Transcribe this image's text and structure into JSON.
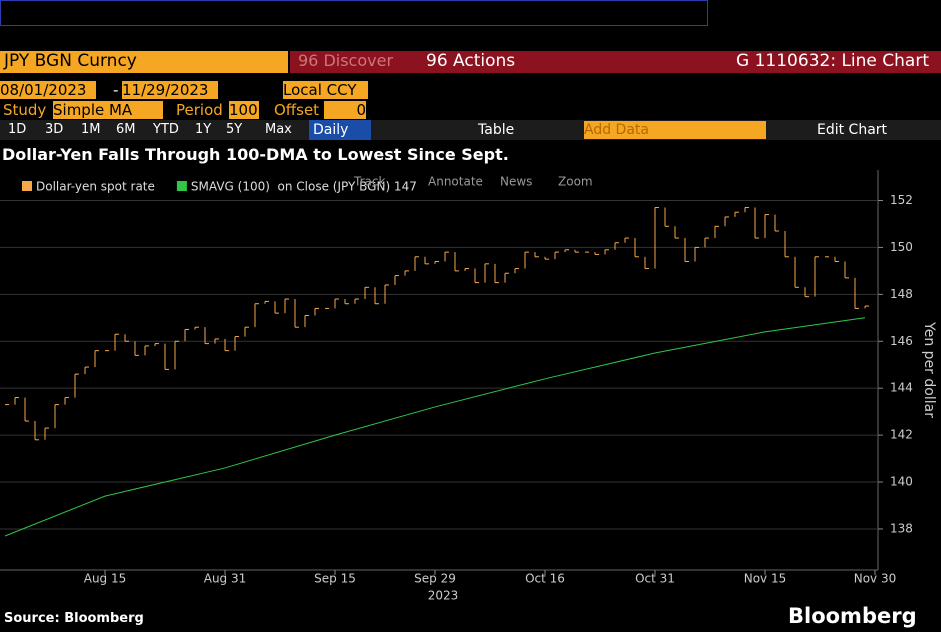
{
  "ui": {
    "security": "JPY BGN Curncy",
    "discover": "96 Discover",
    "actions": "96 Actions",
    "window_title": "G 1110632: Line Chart",
    "start_date": "08/01/2023",
    "end_date": "11/29/2023",
    "currency": "Local CCY",
    "study_label": "Study",
    "study": "Simple MA",
    "period_label": "Period",
    "period": "100",
    "offset_label": "Offset",
    "offset": "0",
    "ranges": [
      "1D",
      "3D",
      "1M",
      "6M",
      "YTD",
      "1Y",
      "5Y",
      "Max"
    ],
    "frequency": "Daily",
    "table": "Table",
    "add_data": "Add Data",
    "edit_chart": "Edit Chart",
    "tools": [
      "Track",
      "Annotate",
      "News",
      "Zoom"
    ],
    "source": "Source: Bloomberg",
    "brand": "Bloomberg"
  },
  "chart_data": {
    "type": "ohlc",
    "title": "Dollar-Yen Falls Through 100-DMA to Lowest Since Sept.",
    "ylabel": "Yen per dollar",
    "xlabel": "2023",
    "categories": [
      "Aug 1",
      "Aug 2",
      "Aug 3",
      "Aug 4",
      "Aug 7",
      "Aug 8",
      "Aug 9",
      "Aug 10",
      "Aug 11",
      "Aug 14",
      "Aug 15",
      "Aug 16",
      "Aug 17",
      "Aug 18",
      "Aug 21",
      "Aug 22",
      "Aug 23",
      "Aug 24",
      "Aug 25",
      "Aug 28",
      "Aug 29",
      "Aug 30",
      "Aug 31",
      "Sep 1",
      "Sep 4",
      "Sep 5",
      "Sep 6",
      "Sep 7",
      "Sep 8",
      "Sep 11",
      "Sep 12",
      "Sep 13",
      "Sep 14",
      "Sep 15",
      "Sep 18",
      "Sep 19",
      "Sep 20",
      "Sep 21",
      "Sep 22",
      "Sep 25",
      "Sep 26",
      "Sep 27",
      "Sep 28",
      "Sep 29",
      "Oct 2",
      "Oct 3",
      "Oct 4",
      "Oct 5",
      "Oct 6",
      "Oct 9",
      "Oct 10",
      "Oct 11",
      "Oct 12",
      "Oct 13",
      "Oct 16",
      "Oct 17",
      "Oct 18",
      "Oct 19",
      "Oct 20",
      "Oct 23",
      "Oct 24",
      "Oct 25",
      "Oct 26",
      "Oct 27",
      "Oct 30",
      "Oct 31",
      "Nov 1",
      "Nov 2",
      "Nov 3",
      "Nov 6",
      "Nov 7",
      "Nov 8",
      "Nov 9",
      "Nov 10",
      "Nov 13",
      "Nov 14",
      "Nov 15",
      "Nov 16",
      "Nov 17",
      "Nov 20",
      "Nov 21",
      "Nov 22",
      "Nov 23",
      "Nov 24",
      "Nov 27",
      "Nov 28",
      "Nov 29"
    ],
    "series": [
      {
        "name": "Dollar-yen spot rate",
        "color": "#f5a84a",
        "values": [
          143.3,
          143.6,
          142.6,
          141.8,
          142.3,
          143.3,
          143.6,
          144.6,
          144.9,
          145.6,
          145.6,
          146.3,
          146.0,
          145.4,
          145.8,
          145.9,
          144.8,
          146.0,
          146.5,
          146.6,
          145.9,
          146.1,
          145.6,
          146.2,
          146.6,
          147.6,
          147.7,
          147.2,
          147.8,
          146.6,
          147.1,
          147.4,
          147.4,
          147.8,
          147.6,
          147.8,
          148.3,
          147.6,
          148.4,
          148.8,
          149.0,
          149.6,
          149.3,
          149.4,
          149.8,
          149.0,
          149.1,
          148.5,
          149.3,
          148.5,
          148.9,
          149.1,
          149.8,
          149.6,
          149.5,
          149.8,
          149.9,
          149.8,
          149.8,
          149.7,
          149.9,
          150.2,
          150.4,
          149.6,
          149.1,
          151.7,
          150.9,
          150.4,
          149.4,
          150.0,
          150.4,
          150.9,
          151.3,
          151.5,
          151.7,
          150.4,
          151.4,
          150.7,
          149.6,
          148.3,
          147.9,
          149.6,
          149.6,
          149.4,
          148.7,
          147.4,
          147.5
        ]
      },
      {
        "name": "SMAVG (100)  on Close (JPY BGN) 147",
        "color": "#2fc64a",
        "x": [
          "Aug 1",
          "Aug 15",
          "Aug 31",
          "Sep 15",
          "Sep 29",
          "Oct 16",
          "Oct 31",
          "Nov 15",
          "Nov 29"
        ],
        "values": [
          137.7,
          139.4,
          140.6,
          142.0,
          143.2,
          144.4,
          145.5,
          146.4,
          147.0
        ]
      }
    ],
    "xticks": [
      "Aug 15",
      "Aug 31",
      "Sep 15",
      "Sep 29",
      "Oct 16",
      "Oct 31",
      "Nov 15",
      "Nov 30"
    ],
    "ylim": [
      136.25,
      153.3
    ],
    "yticks": [
      138,
      140,
      142,
      144,
      146,
      148,
      150,
      152
    ],
    "grid": true
  }
}
